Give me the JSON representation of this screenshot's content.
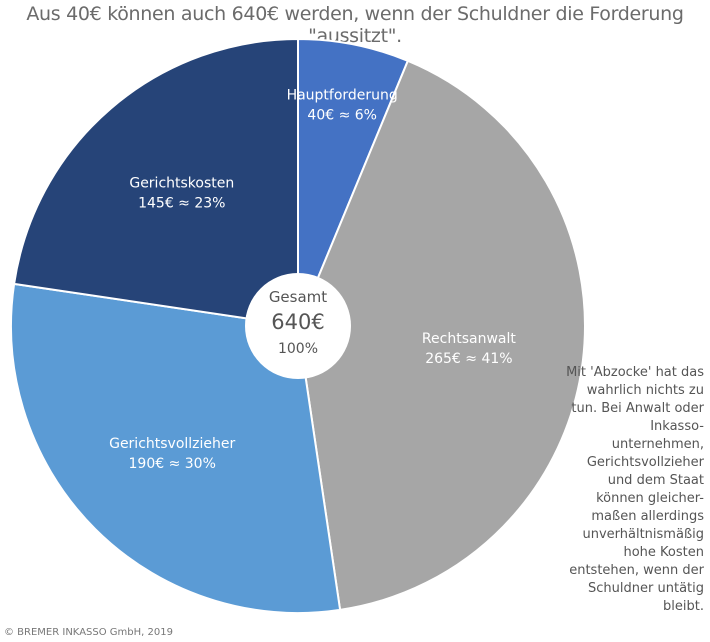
{
  "chart_data": {
    "type": "pie",
    "title": "Aus 40€ können auch 640€ werden, wenn der Schuldner die Forderung \"aussitzt\".",
    "slices": [
      {
        "name": "Hauptforderung",
        "value": 40,
        "value_label": "40€ ≈ 6%",
        "color": "#4472c4"
      },
      {
        "name": "Rechtsanwalt",
        "value": 265,
        "value_label": "265€ ≈ 41%",
        "color": "#a6a6a6"
      },
      {
        "name": "Gerichtsvollzieher",
        "value": 190,
        "value_label": "190€ ≈ 30%",
        "color": "#5b9bd5"
      },
      {
        "name": "Gerichtskosten",
        "value": 145,
        "value_label": "145€ ≈ 23%",
        "color": "#264478"
      }
    ],
    "center": {
      "line1": "Gesamt",
      "line2": "640€",
      "line3": "100%"
    }
  },
  "side_note": "Mit 'Abzocke' hat das wahrlich nichts zu tun. Bei Anwalt oder Inkasso-unternehmen, Gerichtsvollzieher und dem Staat können gleicher-maßen allerdings unverhältnismäßig hohe Kosten entstehen, wenn der Schuldner untätig bleibt.",
  "footer": "© BREMER INKASSO GmbH, 2019"
}
